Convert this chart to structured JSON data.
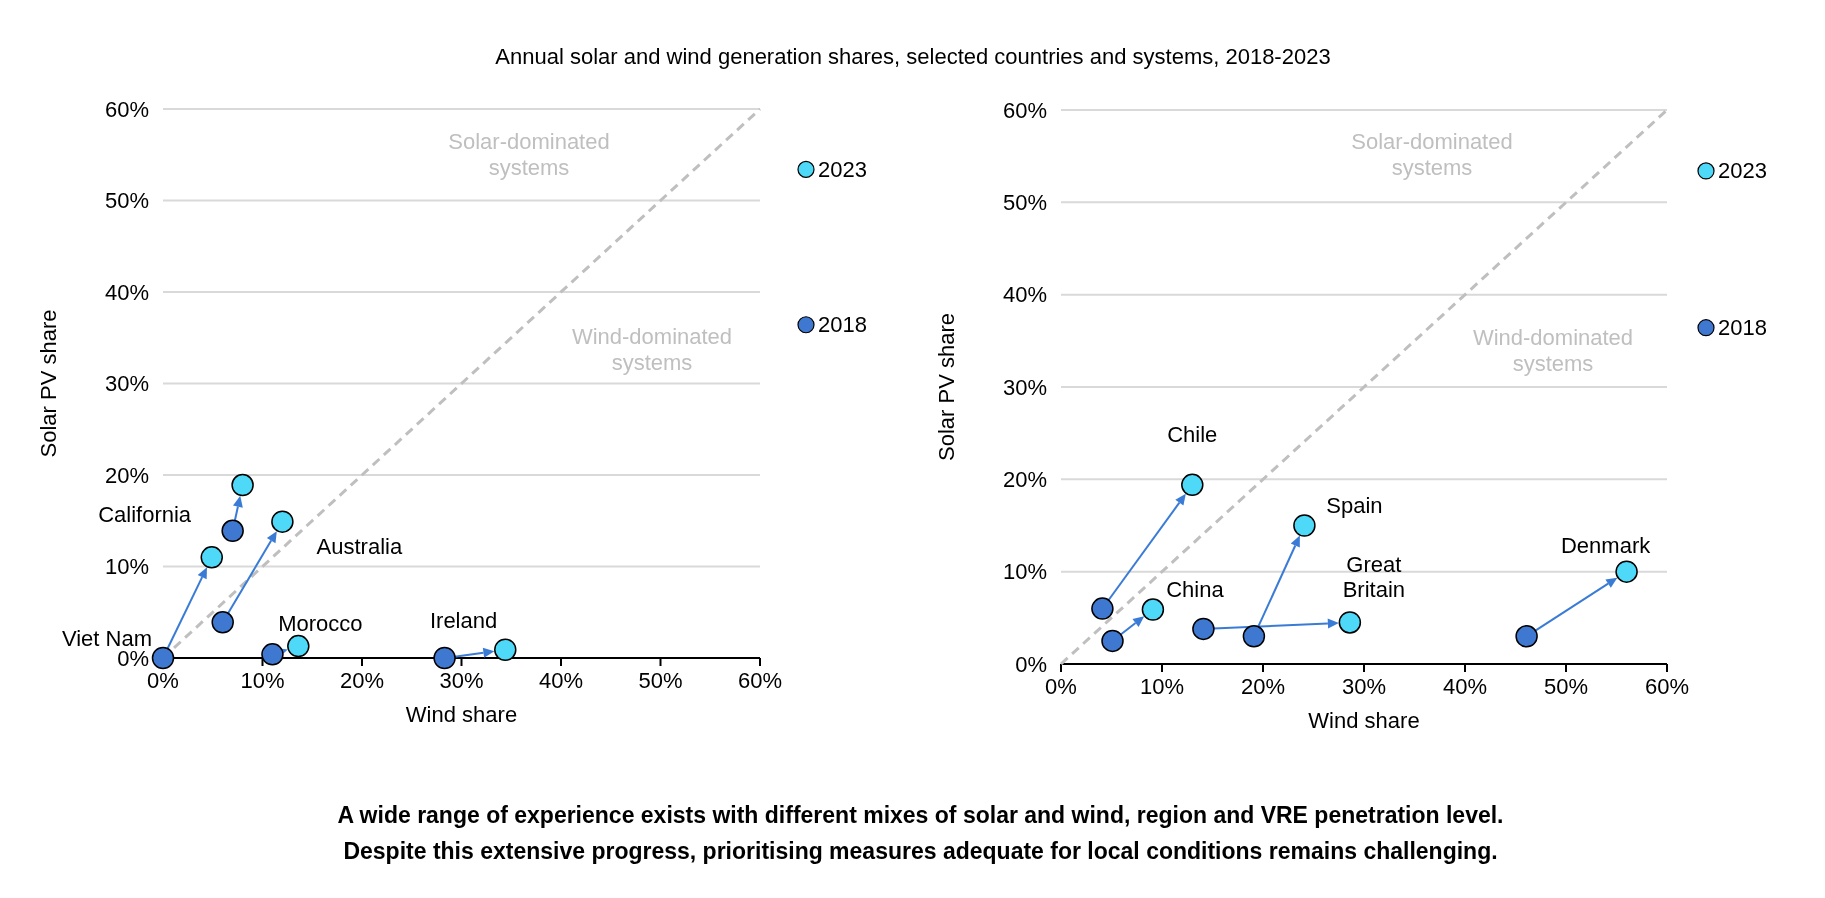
{
  "chart_data": [
    {
      "type": "scatter",
      "title": "Annual solar and wind generation shares, selected countries and systems, 2018-2023",
      "xlabel": "Wind share",
      "ylabel": "Solar PV share",
      "xlim": [
        0,
        60
      ],
      "ylim": [
        0,
        60
      ],
      "xticks": [
        {
          "value": 0,
          "label": "0%"
        },
        {
          "value": 10,
          "label": "10%"
        },
        {
          "value": 20,
          "label": "20%"
        },
        {
          "value": 30,
          "label": "30%"
        },
        {
          "value": 40,
          "label": "40%"
        },
        {
          "value": 50,
          "label": "50%"
        },
        {
          "value": 60,
          "label": "60%"
        }
      ],
      "yticks": [
        {
          "value": 0,
          "label": "0%"
        },
        {
          "value": 10,
          "label": "10%"
        },
        {
          "value": 20,
          "label": "20%"
        },
        {
          "value": 30,
          "label": "30%"
        },
        {
          "value": 40,
          "label": "40%"
        },
        {
          "value": 50,
          "label": "50%"
        },
        {
          "value": 60,
          "label": "60%"
        }
      ],
      "grid": "y",
      "legend": "right",
      "marker": "circle",
      "series": [
        {
          "type": "line",
          "color": "#bfbfbf",
          "line_style": "dashed",
          "marker": "none",
          "x": [
            0,
            60
          ],
          "values": [
            0,
            60
          ]
        },
        {
          "name": "2023",
          "color": "#4dd9f7",
          "x": [
            4.9,
            8.0,
            12.0,
            13.6,
            34.4
          ],
          "values": [
            11.0,
            18.9,
            14.9,
            1.3,
            0.9
          ]
        },
        {
          "name": "2018",
          "color": "#3f78d0",
          "x": [
            0,
            7.0,
            6.0,
            11.0,
            28.3
          ],
          "values": [
            0,
            13.9,
            3.9,
            0.4,
            0
          ]
        }
      ],
      "annotations": [
        {
          "text": "Viet Nam",
          "x": 0,
          "y": 0
        },
        {
          "text": "California",
          "x": 7.0,
          "y": 13.9
        },
        {
          "text": "Australia",
          "x": 12.0,
          "y": 14.9
        },
        {
          "text": "Morocco",
          "x": 13.6,
          "y": 1.3
        },
        {
          "text": "Ireland",
          "x": 28.3,
          "y": 0
        },
        "Solar-dominated\nsystems",
        "Wind-dominated\nsystems"
      ]
    },
    {
      "type": "scatter",
      "xlabel": "Wind share",
      "ylabel": "Solar PV share",
      "xlim": [
        0,
        60
      ],
      "ylim": [
        0,
        60
      ],
      "xticks": [
        {
          "value": 0,
          "label": "0%"
        },
        {
          "value": 10,
          "label": "10%"
        },
        {
          "value": 20,
          "label": "20%"
        },
        {
          "value": 30,
          "label": "30%"
        },
        {
          "value": 40,
          "label": "40%"
        },
        {
          "value": 50,
          "label": "50%"
        },
        {
          "value": 60,
          "label": "60%"
        }
      ],
      "yticks": [
        {
          "value": 0,
          "label": "0%"
        },
        {
          "value": 10,
          "label": "10%"
        },
        {
          "value": 20,
          "label": "20%"
        },
        {
          "value": 30,
          "label": "30%"
        },
        {
          "value": 40,
          "label": "40%"
        },
        {
          "value": 50,
          "label": "50%"
        },
        {
          "value": 60,
          "label": "60%"
        }
      ],
      "grid": "y",
      "legend": "right",
      "marker": "circle",
      "series": [
        {
          "type": "line",
          "color": "#bfbfbf",
          "line_style": "dashed",
          "marker": "none",
          "x": [
            0,
            60
          ],
          "values": [
            0,
            60
          ]
        },
        {
          "name": "2023",
          "color": "#4dd9f7",
          "x": [
            13.0,
            9.1,
            28.6,
            24.1,
            56.0
          ],
          "values": [
            19.4,
            5.9,
            4.5,
            15.0,
            10.0
          ]
        },
        {
          "name": "2018",
          "color": "#3f78d0",
          "x": [
            4.1,
            5.1,
            14.1,
            19.1,
            46.1
          ],
          "values": [
            6.0,
            2.5,
            3.8,
            3.0,
            3.0
          ]
        }
      ],
      "annotations": [
        {
          "text": "Chile",
          "x": 13.0,
          "y": 19.4
        },
        {
          "text": "China",
          "x": 9.1,
          "y": 5.9
        },
        {
          "text": "Great\nBritain",
          "x": 28.6,
          "y": 4.5
        },
        {
          "text": "Spain",
          "x": 24.1,
          "y": 15.0
        },
        {
          "text": "Denmark",
          "x": 56.0,
          "y": 10.0
        },
        "Solar-dominated\nsystems",
        "Wind-dominated\nsystems",
        "A wide range of experience exists with different mixes of solar and wind, region and VRE penetration level.",
        "Despite this extensive progress, prioritising measures adequate for local conditions remains challenging."
      ]
    }
  ]
}
